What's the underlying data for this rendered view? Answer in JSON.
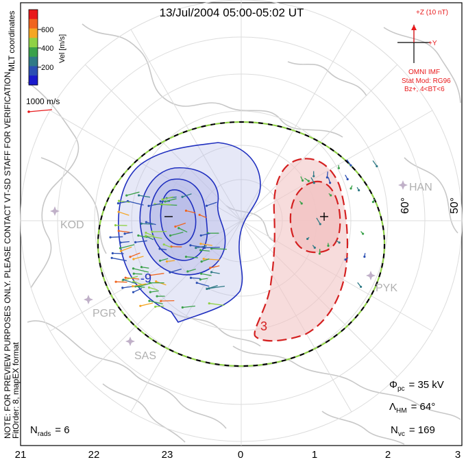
{
  "title": "13/Jul/2004 05:00-05:02 UT",
  "colorbar": {
    "label": "Vel [m/s]",
    "ticks": [
      "600",
      "400",
      "200"
    ],
    "colors": [
      "#e8191b",
      "#f0641e",
      "#f5a623",
      "#8fd146",
      "#3aa14a",
      "#2f7a86",
      "#2b4fb3",
      "#1a1acc"
    ]
  },
  "side_notes": {
    "coordinates": "MLT coordinates",
    "preview_note": "NOTE: FOR PREVIEW PURPOSES ONLY. PLEASE CONTACT VT-SD STAFF FOR VERIFICATION.",
    "fit_order": "FitOrder: 8, mapEX format"
  },
  "scale_vector": {
    "label": "1000 m/s",
    "color": "#e8191b"
  },
  "imf": {
    "z_label": "+Z (10 nT)",
    "y_label": "+Y",
    "source": "OMNI IMF",
    "model": "Stat Mod: RG96",
    "condition": "Bz+, 4<BT<6",
    "color": "#e8191b"
  },
  "latitude_labels": [
    "60°",
    "50°"
  ],
  "stations": [
    "HAN",
    "KOD",
    "PYK",
    "PGR",
    "SAS"
  ],
  "contour_labels": [
    "-9",
    "3"
  ],
  "stats": {
    "phi_label": "Φ",
    "phi_sub": "pc",
    "phi_value": "= 35 kV",
    "lambda_label": "Λ",
    "lambda_sub": "HM",
    "lambda_value": "= 64°",
    "nvc_label": "N",
    "nvc_sub": "vc",
    "nvc_value": "= 169",
    "nrads_label": "N",
    "nrads_sub": "rads",
    "nrads_value": "= 6"
  },
  "mlt_ticks": [
    "21",
    "22",
    "23",
    "0",
    "1",
    "2",
    "3"
  ],
  "colors": {
    "negative_cell_fill": "#b8bce8",
    "positive_cell_fill": "#f2c4c4",
    "negative_contour": "#1f2fbf",
    "positive_contour": "#d42020",
    "coastline": "#c7c7c7",
    "hmb_dash_1": "#000000",
    "hmb_dash_2": "#8fd146"
  }
}
